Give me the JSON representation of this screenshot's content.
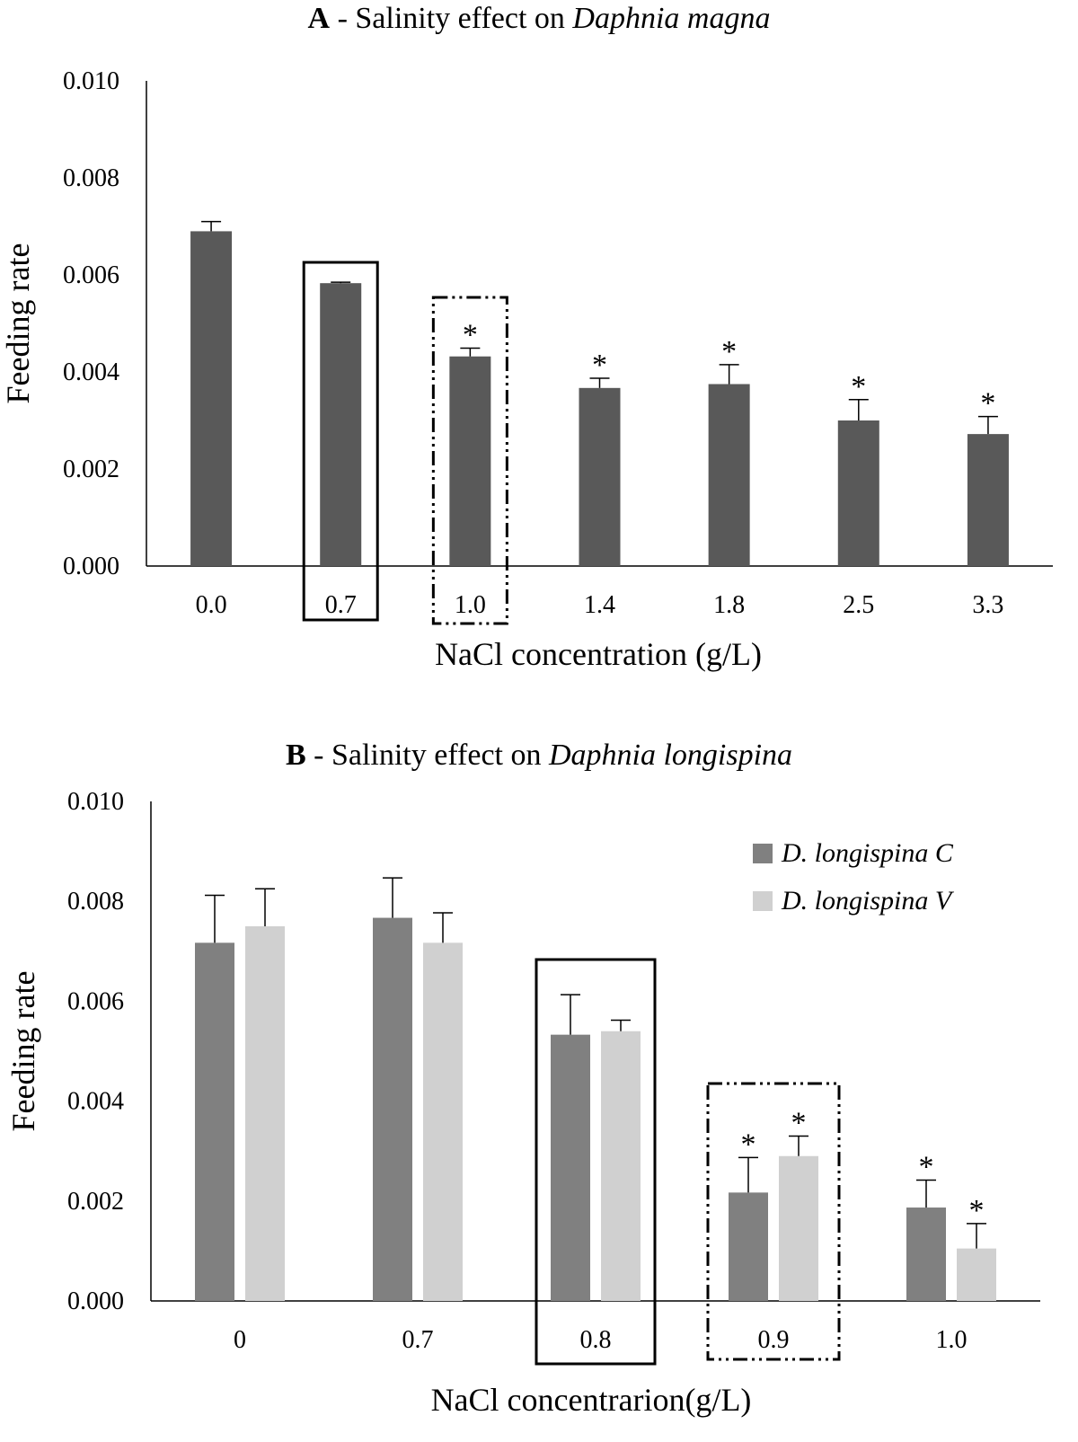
{
  "chart_data": [
    {
      "type": "bar",
      "panel": "A",
      "title": {
        "letter": "A",
        "text": " - Salinity effect on ",
        "species": "Daphnia magna"
      },
      "xlabel": "NaCl concentration (g/L)",
      "ylabel": "Feeding rate",
      "ylim": [
        0,
        0.01
      ],
      "yticks": [
        "0.000",
        "0.002",
        "0.004",
        "0.006",
        "0.008",
        "0.010"
      ],
      "categories": [
        "0.0",
        "0.7",
        "1.0",
        "1.4",
        "1.8",
        "2.5",
        "3.3"
      ],
      "series": [
        {
          "name": "Daphnia magna",
          "color": "#595959",
          "values": [
            0.0069,
            0.00583,
            0.00432,
            0.00367,
            0.00375,
            0.003,
            0.00272
          ],
          "errors": [
            0.0002,
            2e-05,
            0.00017,
            0.0002,
            0.0004,
            0.00043,
            0.00036
          ],
          "significant": [
            false,
            false,
            true,
            true,
            true,
            true,
            true
          ]
        }
      ],
      "annotations": [
        {
          "category": "0.7",
          "style": "solid-box"
        },
        {
          "category": "1.0",
          "style": "dash-dot-box"
        }
      ],
      "significance_mark": "*"
    },
    {
      "type": "bar",
      "panel": "B",
      "title": {
        "letter": "B",
        "text": " - Salinity effect on ",
        "species": "Daphnia longispina"
      },
      "xlabel": "NaCl concentrarion(g/L)",
      "ylabel": "Feeding rate",
      "ylim": [
        0,
        0.01
      ],
      "yticks": [
        "0.000",
        "0.002",
        "0.004",
        "0.006",
        "0.008",
        "0.010"
      ],
      "categories": [
        "0",
        "0.7",
        "0.8",
        "0.9",
        "1.0"
      ],
      "legend_position": "top-right",
      "series": [
        {
          "name": "D. longispina C",
          "color": "#808080",
          "values": [
            0.00717,
            0.00767,
            0.00533,
            0.00217,
            0.00187
          ],
          "errors": [
            0.00095,
            0.0008,
            0.0008,
            0.0007,
            0.00055
          ],
          "significant": [
            false,
            false,
            false,
            true,
            true
          ]
        },
        {
          "name": "D. longispina V",
          "color": "#d0d0d0",
          "values": [
            0.0075,
            0.00717,
            0.0054,
            0.0029,
            0.00105
          ],
          "errors": [
            0.00075,
            0.0006,
            0.00022,
            0.0004,
            0.0005
          ],
          "significant": [
            false,
            false,
            false,
            true,
            true
          ]
        }
      ],
      "annotations": [
        {
          "category": "0.8",
          "style": "solid-box"
        },
        {
          "category": "0.9",
          "style": "dash-dot-box"
        }
      ],
      "significance_mark": "*"
    }
  ]
}
